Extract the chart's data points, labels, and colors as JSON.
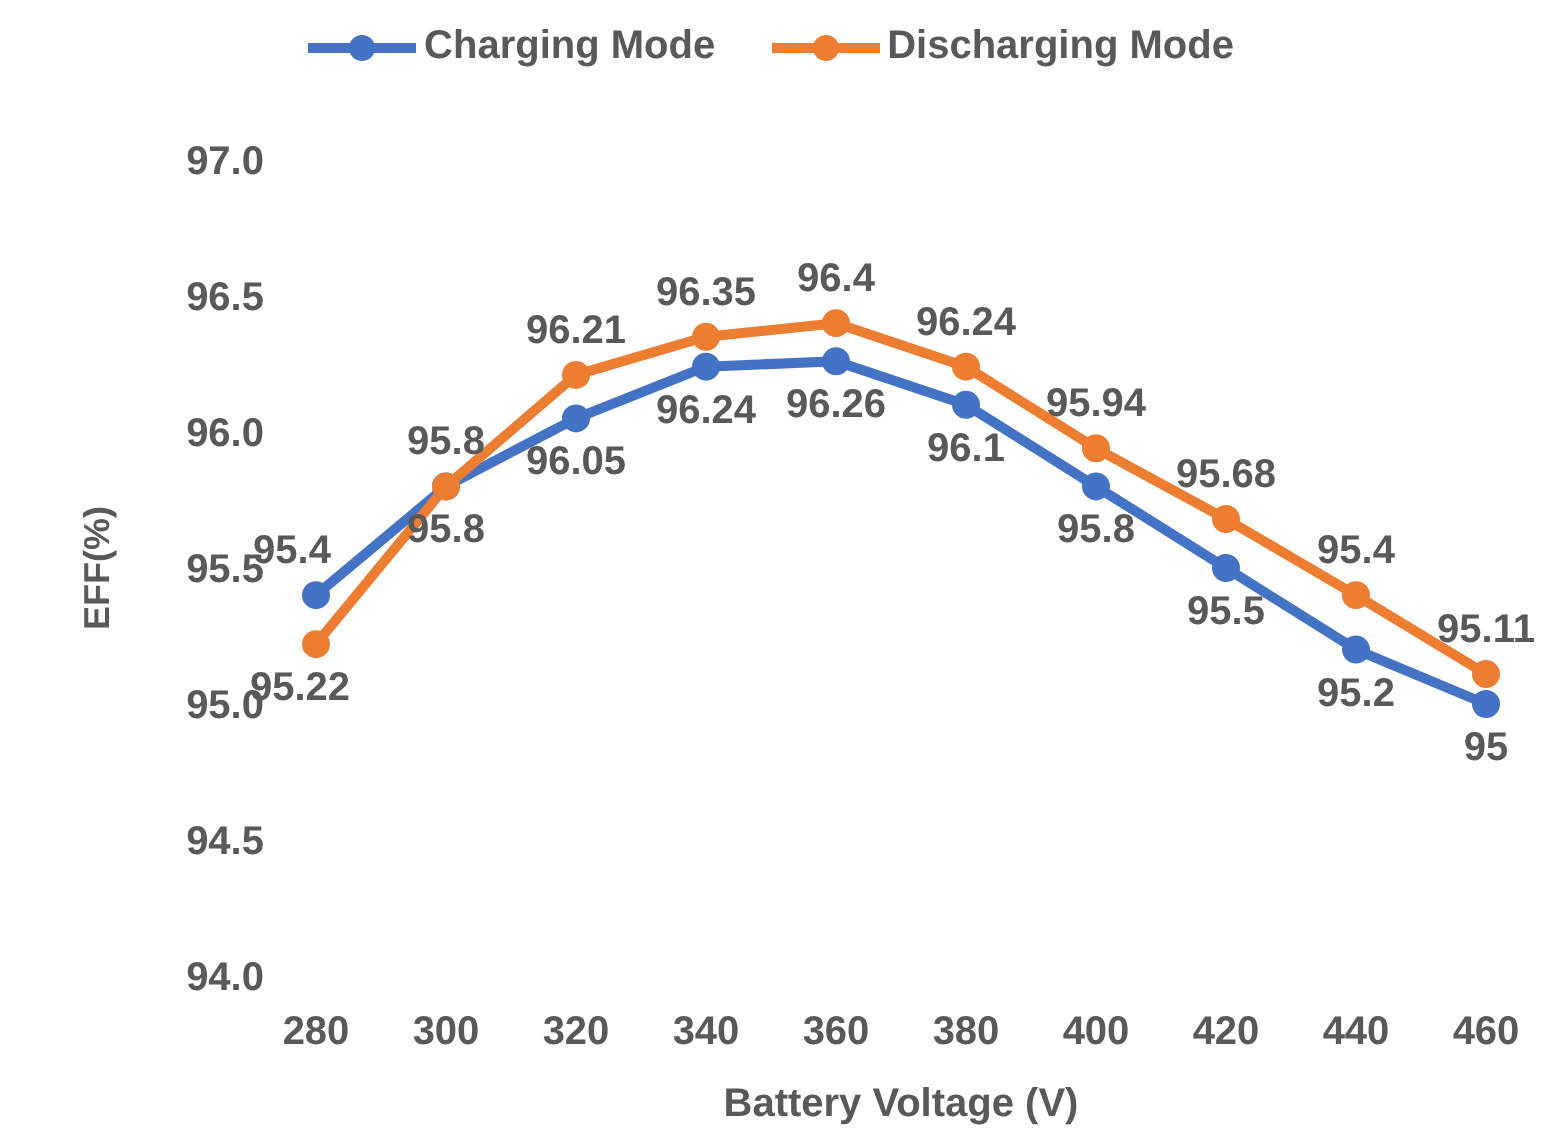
{
  "chart_data": {
    "type": "line",
    "xlabel": "Battery Voltage (V)",
    "ylabel": "EFF(%)",
    "categories": [
      "280",
      "300",
      "320",
      "340",
      "360",
      "380",
      "400",
      "420",
      "440",
      "460"
    ],
    "series": [
      {
        "name": "Charging Mode",
        "color": "#4472c4",
        "values": [
          95.4,
          95.8,
          96.05,
          96.24,
          96.26,
          96.1,
          95.8,
          95.5,
          95.2,
          95
        ]
      },
      {
        "name": "Discharging Mode",
        "color": "#ed7d31",
        "values": [
          95.22,
          95.8,
          96.21,
          96.35,
          96.4,
          96.24,
          95.94,
          95.68,
          95.4,
          95.11
        ]
      }
    ],
    "ylim": [
      94,
      97
    ],
    "yticks": [
      {
        "value": 94,
        "label": "94.0"
      },
      {
        "value": 94.5,
        "label": "94.5"
      },
      {
        "value": 95,
        "label": "95.0"
      },
      {
        "value": 95.5,
        "label": "95.5"
      },
      {
        "value": 96,
        "label": "96.0"
      },
      {
        "value": 96.5,
        "label": "96.5"
      },
      {
        "value": 97,
        "label": "97.0"
      }
    ],
    "grid": false,
    "legend": "top",
    "marker": "circle",
    "line_style": "solid",
    "data_labels": true
  }
}
